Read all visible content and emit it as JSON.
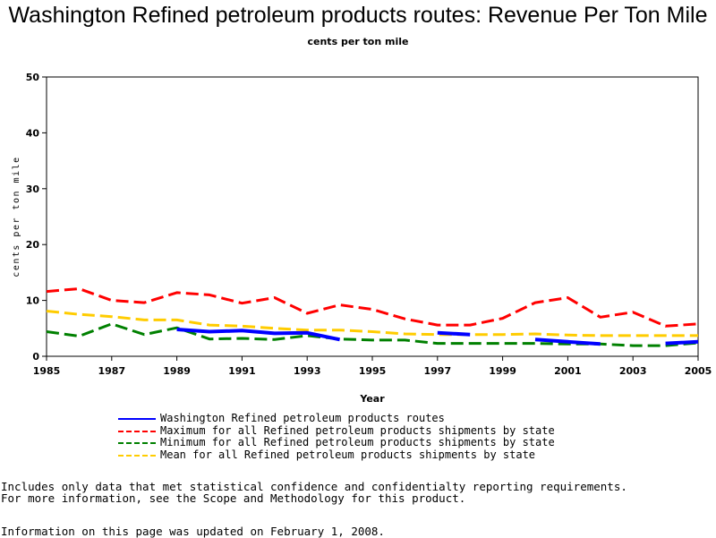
{
  "title": "Washington Refined petroleum products routes: Revenue Per Ton Mile",
  "subtitle": "cents per ton mile",
  "chart_data": {
    "type": "line",
    "title": "Washington Refined petroleum products routes: Revenue Per Ton Mile",
    "subtitle": "cents per ton mile",
    "xlabel": "Year",
    "ylabel": "cents per ton mile",
    "xlim": [
      1985,
      2005
    ],
    "ylim": [
      0,
      50
    ],
    "x_ticks": [
      "1985",
      "1987",
      "1989",
      "1991",
      "1993",
      "1995",
      "1997",
      "1999",
      "2001",
      "2003",
      "2005"
    ],
    "y_ticks": [
      "0",
      "10",
      "20",
      "30",
      "40",
      "50"
    ],
    "grid": false,
    "legend_position": "bottom",
    "x": [
      1985,
      1986,
      1987,
      1988,
      1989,
      1990,
      1991,
      1992,
      1993,
      1994,
      1995,
      1996,
      1997,
      1998,
      1999,
      2000,
      2001,
      2002,
      2003,
      2004,
      2005
    ],
    "series": [
      {
        "name": "Washington Refined petroleum products routes",
        "color": "#0000ff",
        "style": "solid",
        "values": [
          null,
          null,
          null,
          null,
          4.8,
          4.4,
          4.6,
          4.1,
          4.2,
          3.0,
          null,
          null,
          4.2,
          3.9,
          null,
          3.0,
          2.6,
          2.2,
          null,
          2.3,
          2.6
        ]
      },
      {
        "name": "Maximum for all Refined petroleum products shipments by state",
        "color": "#ff0000",
        "style": "dashed",
        "values": [
          11.6,
          12.1,
          10.0,
          9.6,
          11.4,
          11.0,
          9.5,
          10.5,
          7.7,
          9.2,
          8.4,
          6.7,
          5.6,
          5.6,
          6.8,
          9.6,
          10.5,
          7.0,
          7.9,
          5.4,
          5.8
        ]
      },
      {
        "name": "Minimum for all Refined petroleum products shipments by state",
        "color": "#008000",
        "style": "dashed",
        "values": [
          4.4,
          3.6,
          5.8,
          3.9,
          5.1,
          3.1,
          3.2,
          3.0,
          3.7,
          3.1,
          2.9,
          2.9,
          2.3,
          2.3,
          2.3,
          2.3,
          2.2,
          2.2,
          1.9,
          1.9,
          2.4
        ]
      },
      {
        "name": "Mean for all Refined petroleum products shipments by state",
        "color": "#ffcc00",
        "style": "dashed",
        "values": [
          8.1,
          7.5,
          7.1,
          6.5,
          6.5,
          5.6,
          5.4,
          5.0,
          4.7,
          4.7,
          4.4,
          4.0,
          3.9,
          3.9,
          3.9,
          4.0,
          3.8,
          3.7,
          3.7,
          3.7,
          3.7
        ]
      }
    ]
  },
  "notes": {
    "line1": "Includes only data that met statistical confidence and confidentialty reporting requirements.",
    "line2": "For more information, see the Scope and Methodology for this product.",
    "line3": "Information on this page was updated on February 1, 2008."
  }
}
